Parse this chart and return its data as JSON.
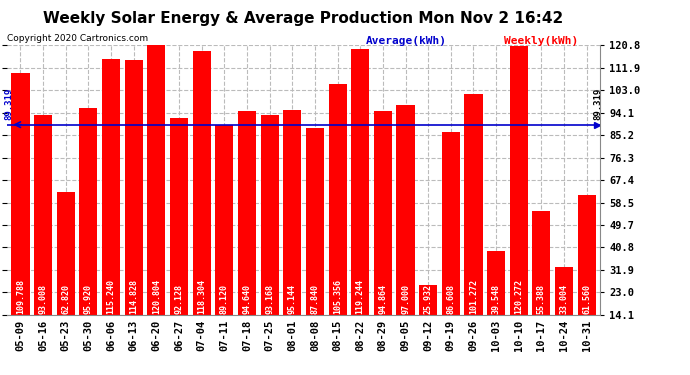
{
  "title": "Weekly Solar Energy & Average Production Mon Nov 2 16:42",
  "copyright": "Copyright 2020 Cartronics.com",
  "legend_average": "Average(kWh)",
  "legend_weekly": "Weekly(kWh)",
  "average_value": 89.319,
  "average_label": "89.319",
  "bar_color": "#ff0000",
  "average_line_color": "#0000cc",
  "background_color": "#ffffff",
  "grid_color": "#bbbbbb",
  "yticks": [
    14.1,
    23.0,
    31.9,
    40.8,
    49.7,
    58.5,
    67.4,
    76.3,
    85.2,
    94.1,
    103.0,
    111.9,
    120.8
  ],
  "ymin": 14.1,
  "ymax": 120.8,
  "categories": [
    "05-09",
    "05-16",
    "05-23",
    "05-30",
    "06-06",
    "06-13",
    "06-20",
    "06-27",
    "07-04",
    "07-11",
    "07-18",
    "07-25",
    "08-01",
    "08-08",
    "08-15",
    "08-22",
    "08-29",
    "09-05",
    "09-12",
    "09-19",
    "09-26",
    "10-03",
    "10-10",
    "10-17",
    "10-24",
    "10-31"
  ],
  "values": [
    109.788,
    93.008,
    62.82,
    95.92,
    115.24,
    114.828,
    120.804,
    92.128,
    118.304,
    89.12,
    94.64,
    93.168,
    95.144,
    87.84,
    105.356,
    119.244,
    94.864,
    97.0,
    25.932,
    86.608,
    101.272,
    39.548,
    120.272,
    55.388,
    33.004,
    61.56
  ],
  "title_fontsize": 11,
  "tick_fontsize": 7.5,
  "bar_label_fontsize": 6,
  "legend_fontsize": 8,
  "copyright_fontsize": 6.5
}
